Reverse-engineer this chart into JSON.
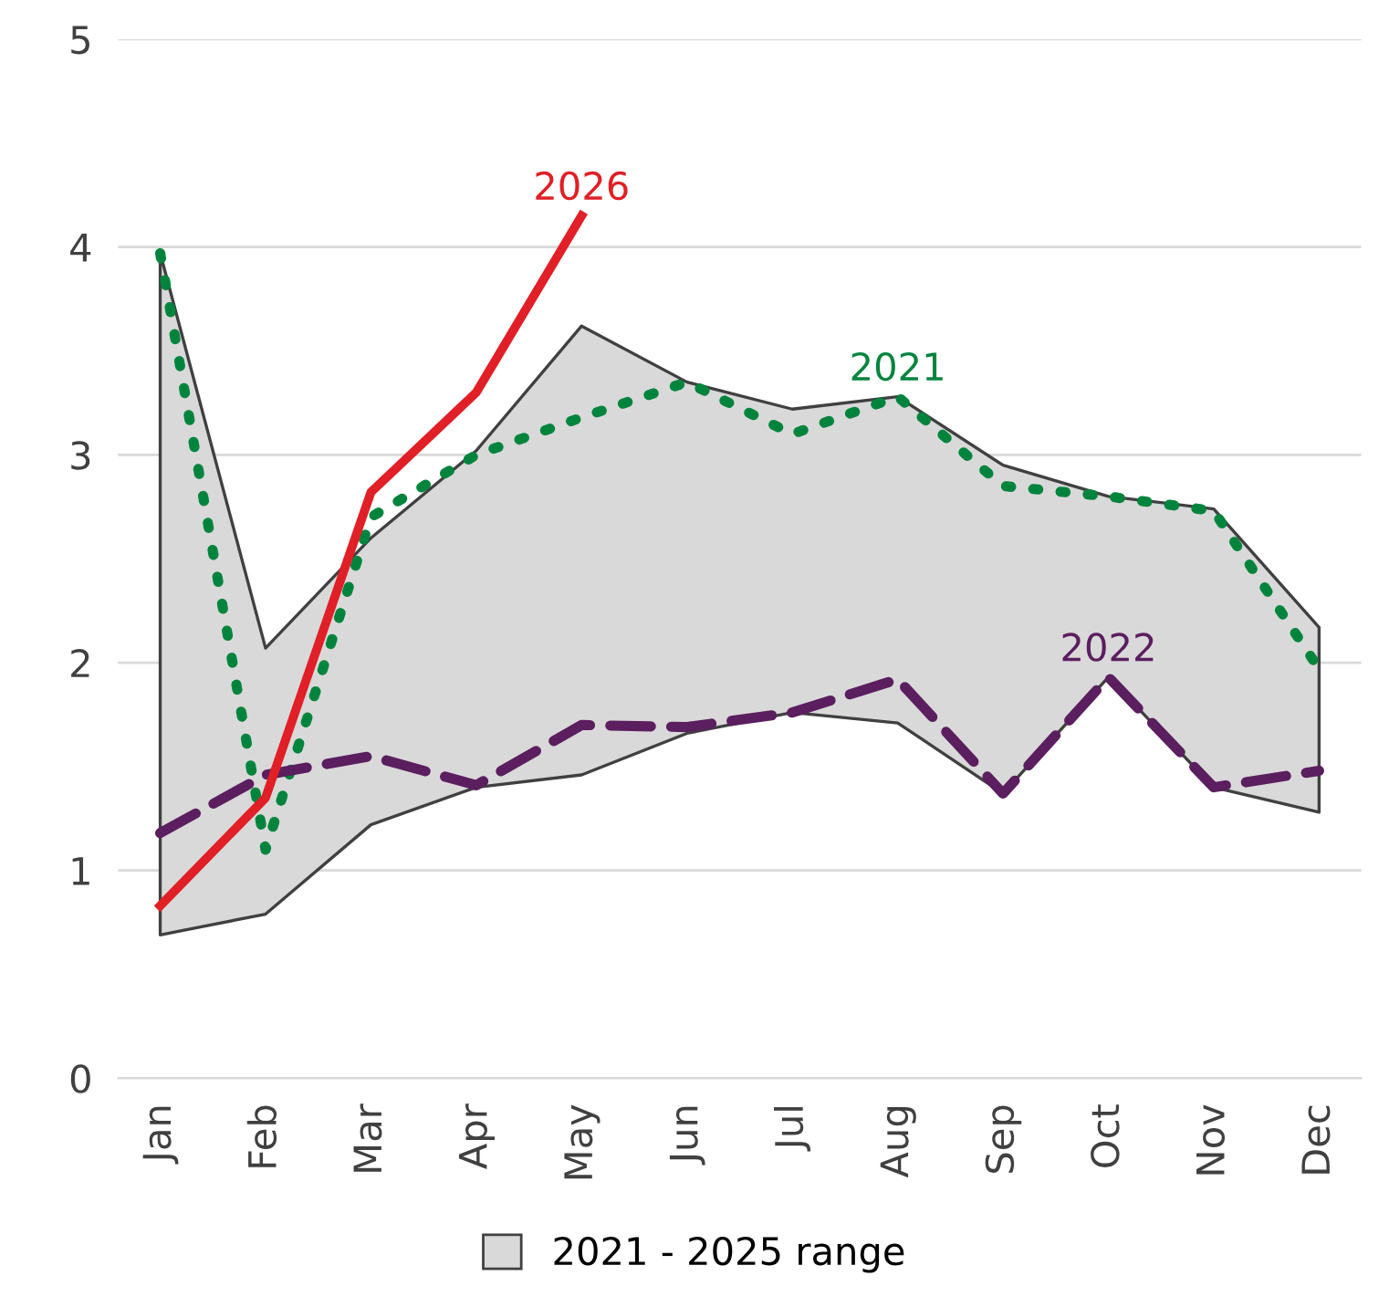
{
  "chart_data": {
    "type": "line",
    "categories": [
      "Jan",
      "Feb",
      "Mar",
      "Apr",
      "May",
      "Jun",
      "Jul",
      "Aug",
      "Sep",
      "Oct",
      "Nov",
      "Dec"
    ],
    "series": [
      {
        "name": "2021 - 2025 range",
        "type": "area",
        "color": "#d9d9d9",
        "values": [
          null,
          null,
          null,
          null,
          null,
          null,
          null,
          null,
          null,
          null,
          null,
          null
        ],
        "lower": [
          0.69,
          0.79,
          1.22,
          1.4,
          1.46,
          1.66,
          1.76,
          1.71,
          1.37,
          1.93,
          1.4,
          1.28
        ],
        "upper": [
          3.97,
          2.07,
          2.6,
          3.02,
          3.62,
          3.35,
          3.22,
          3.28,
          2.95,
          2.8,
          2.74,
          2.17
        ]
      },
      {
        "name": "2021",
        "color": "#00843d",
        "line_style": "dotted",
        "values": [
          3.97,
          1.1,
          2.7,
          3.0,
          3.18,
          3.35,
          3.1,
          3.28,
          2.85,
          2.8,
          2.73,
          1.97
        ]
      },
      {
        "name": "2022",
        "color": "#5b1e5f",
        "line_style": "dashed",
        "values": [
          1.18,
          1.46,
          1.55,
          1.41,
          1.7,
          1.69,
          1.76,
          1.92,
          1.37,
          1.93,
          1.4,
          1.48
        ]
      },
      {
        "name": "2026",
        "color": "#e01f26",
        "line_style": "solid",
        "values": [
          0.83,
          1.35,
          2.82,
          3.3,
          4.15,
          null,
          null,
          null,
          null,
          null,
          null,
          null
        ]
      }
    ],
    "ylim": [
      0,
      5
    ],
    "yticks": [
      0,
      1,
      2,
      3,
      4,
      5
    ],
    "grid": "y",
    "legend": "bottom"
  }
}
